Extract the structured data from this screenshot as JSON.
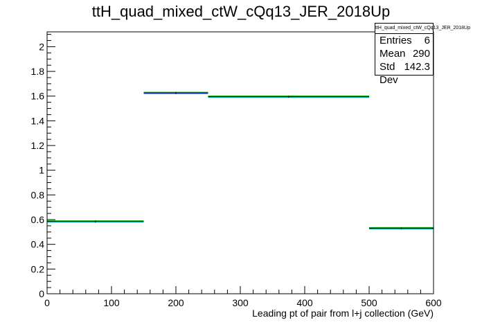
{
  "chart_data": {
    "type": "bar",
    "title": "ttH_quad_mixed_ctW_cQq13_JER_2018Up",
    "xlabel": "Leading pt of pair from l+j collection (GeV)",
    "ylabel": "",
    "xlim": [
      0,
      600
    ],
    "ylim": [
      0,
      2.12
    ],
    "x_ticks": [
      0,
      100,
      200,
      300,
      400,
      500,
      600
    ],
    "y_ticks": [
      0,
      0.2,
      0.4,
      0.6,
      0.8,
      1,
      1.2,
      1.4,
      1.6,
      1.8,
      2
    ],
    "bins": [
      {
        "low": 0,
        "high": 150,
        "value": 0.585
      },
      {
        "low": 150,
        "high": 250,
        "value": 1.625
      },
      {
        "low": 250,
        "high": 500,
        "value": 1.595
      },
      {
        "low": 500,
        "high": 600,
        "value": 0.53
      }
    ],
    "series_colors": [
      "#000080",
      "#00aa00",
      "#00a0a0"
    ],
    "grid": false,
    "legend": "top-right"
  },
  "stats": {
    "name": "ttH_quad_mixed_ctW_cQq13_JER_2018Up",
    "entries_label": "Entries",
    "entries_value": "6",
    "mean_label": "Mean",
    "mean_value": "290",
    "stddev_label": "Std Dev",
    "stddev_value": "142.3"
  }
}
